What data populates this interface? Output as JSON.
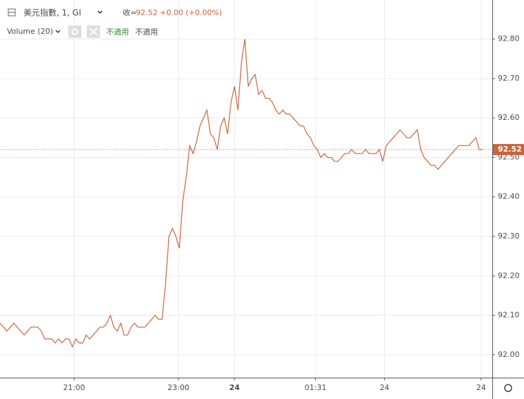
{
  "chart_data": {
    "type": "line",
    "header": {
      "symbol": "美元指數, 1, GI",
      "close_label": "收=",
      "close": "92.52",
      "change": "+0.00 (+0.00%)",
      "indicator": "Volume (20)",
      "na1": "不適用",
      "na2": "不適用"
    },
    "x": [
      0,
      4,
      8,
      12,
      16,
      20,
      24,
      28,
      32,
      36,
      40,
      44,
      48,
      52,
      56,
      60,
      64,
      68,
      72,
      76,
      80,
      84,
      88,
      92,
      96,
      100,
      104,
      108,
      112,
      116,
      120,
      124,
      128,
      132,
      136,
      140,
      144,
      148,
      152,
      156,
      160,
      164,
      168,
      172,
      176,
      180,
      184,
      188,
      192,
      196,
      200,
      204,
      208,
      212,
      216,
      220,
      224,
      228,
      232,
      236,
      240,
      244,
      248,
      252,
      256,
      260,
      264,
      268,
      272,
      276,
      280,
      284,
      288,
      292,
      296,
      300,
      304,
      308,
      312,
      316,
      320,
      324,
      328,
      332,
      336,
      340,
      344,
      348,
      352,
      356,
      360,
      364,
      368,
      372,
      376,
      380,
      384,
      388,
      392,
      396,
      400,
      404,
      408,
      412,
      416,
      420,
      424,
      428,
      432,
      436,
      440,
      444,
      448,
      452,
      456,
      460,
      464,
      468,
      472,
      476,
      480,
      484,
      488,
      492,
      496,
      500,
      504,
      508,
      512,
      516,
      520,
      524,
      528,
      532,
      536,
      540,
      544,
      548,
      552,
      556,
      560
    ],
    "series": [
      {
        "name": "美元指數",
        "color": "#c8643c",
        "values": [
          92.08,
          92.07,
          92.06,
          92.07,
          92.08,
          92.07,
          92.06,
          92.05,
          92.06,
          92.07,
          92.07,
          92.07,
          92.06,
          92.04,
          92.04,
          92.04,
          92.03,
          92.04,
          92.03,
          92.04,
          92.04,
          92.02,
          92.04,
          92.03,
          92.03,
          92.05,
          92.04,
          92.05,
          92.06,
          92.07,
          92.07,
          92.08,
          92.1,
          92.07,
          92.06,
          92.08,
          92.05,
          92.05,
          92.07,
          92.08,
          92.07,
          92.07,
          92.07,
          92.08,
          92.09,
          92.1,
          92.09,
          92.09,
          92.18,
          92.3,
          92.32,
          92.3,
          92.27,
          92.39,
          92.45,
          92.53,
          92.51,
          92.54,
          92.58,
          92.6,
          92.62,
          92.56,
          92.55,
          92.52,
          92.58,
          92.6,
          92.56,
          92.64,
          92.68,
          92.62,
          92.74,
          92.8,
          92.68,
          92.7,
          92.71,
          92.66,
          92.67,
          92.65,
          92.65,
          92.64,
          92.62,
          92.61,
          92.62,
          92.61,
          92.61,
          92.6,
          92.59,
          92.58,
          92.58,
          92.56,
          92.55,
          92.53,
          92.52,
          92.5,
          92.51,
          92.5,
          92.5,
          92.49,
          92.49,
          92.5,
          92.51,
          92.51,
          92.52,
          92.51,
          92.51,
          92.51,
          92.52,
          92.51,
          92.51,
          92.51,
          92.52,
          92.49,
          92.53,
          92.54,
          92.55,
          92.56,
          92.57,
          92.56,
          92.55,
          92.55,
          92.56,
          92.57,
          92.52,
          92.5,
          92.49,
          92.48,
          92.48,
          92.47,
          92.48,
          92.49,
          92.5,
          92.51,
          92.52,
          92.53,
          92.53,
          92.53,
          92.53,
          92.54,
          92.55,
          92.52,
          92.52
        ]
      }
    ],
    "last_price": 92.52,
    "xlim": [
      0,
      571
    ],
    "xticks": [
      {
        "value": 86,
        "label": "21:00"
      },
      {
        "value": 207,
        "label": "23:00"
      },
      {
        "value": 272,
        "label": "24"
      },
      {
        "value": 366,
        "label": "01:31"
      },
      {
        "value": 446,
        "label": "24"
      },
      {
        "value": 558,
        "label": "24"
      }
    ],
    "ylim": [
      91.942,
      92.899
    ],
    "yticks": [
      {
        "value": 92.0,
        "label": "92.00"
      },
      {
        "value": 92.1,
        "label": "92.10"
      },
      {
        "value": 92.2,
        "label": "92.20"
      },
      {
        "value": 92.3,
        "label": "92.30"
      },
      {
        "value": 92.4,
        "label": "92.40"
      },
      {
        "value": 92.5,
        "label": "92.50"
      },
      {
        "value": 92.6,
        "label": "92.60"
      },
      {
        "value": 92.7,
        "label": "92.70"
      },
      {
        "value": 92.8,
        "label": "92.80"
      }
    ],
    "grid": true
  }
}
